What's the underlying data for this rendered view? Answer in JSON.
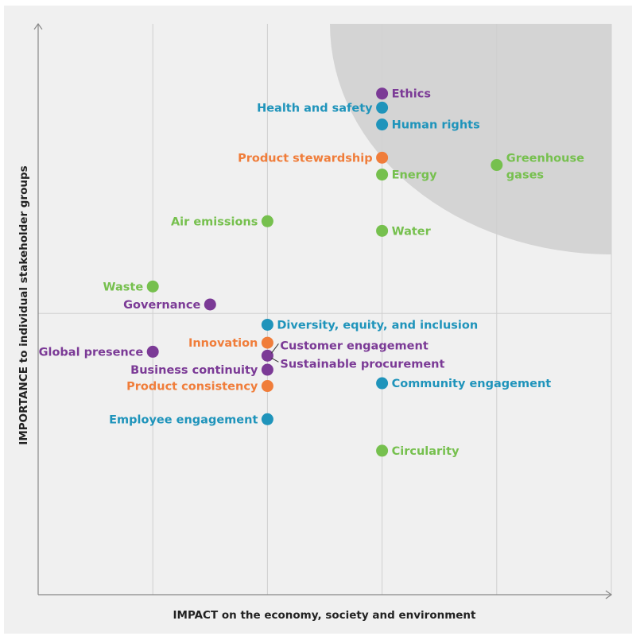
{
  "chart_data": {
    "type": "scatter",
    "title": "",
    "xlabel": "IMPACT on the economy, society and environment",
    "ylabel": "IMPORTANCE to individual stakeholder groups",
    "xlim": [
      0,
      5
    ],
    "ylim": [
      0,
      10.15
    ],
    "grid": {
      "vertical_lines_at": [
        1,
        2,
        3,
        4,
        5
      ],
      "horizontal_lines_at": [
        5
      ]
    },
    "highlight_region": "top-right quarter-ellipse (shaded grey)",
    "colors": {
      "purple": "#7b3a96",
      "blue": "#1f94bb",
      "orange": "#f07d3a",
      "green": "#76c04e",
      "background": "#f0f0f0",
      "shade": "#d4d4d4"
    },
    "points": [
      {
        "label": "Ethics",
        "x": 3,
        "y": 8.91,
        "color": "purple",
        "label_side": "right"
      },
      {
        "label": "Health and safety",
        "x": 3,
        "y": 8.66,
        "color": "blue",
        "label_side": "left"
      },
      {
        "label": "Human rights",
        "x": 3,
        "y": 8.36,
        "color": "blue",
        "label_side": "right"
      },
      {
        "label": "Product stewardship",
        "x": 3,
        "y": 7.77,
        "color": "orange",
        "label_side": "left"
      },
      {
        "label": "Energy",
        "x": 3,
        "y": 7.47,
        "color": "green",
        "label_side": "right"
      },
      {
        "label": "Greenhouse gases",
        "x": 4,
        "y": 7.64,
        "color": "green",
        "label_side": "right"
      },
      {
        "label": "Air emissions",
        "x": 2,
        "y": 6.64,
        "color": "green",
        "label_side": "left"
      },
      {
        "label": "Water",
        "x": 3,
        "y": 6.47,
        "color": "green",
        "label_side": "right"
      },
      {
        "label": "Waste",
        "x": 1,
        "y": 5.48,
        "color": "green",
        "label_side": "left"
      },
      {
        "label": "Governance",
        "x": 1.5,
        "y": 5.16,
        "color": "purple",
        "label_side": "left"
      },
      {
        "label": "Diversity, equity, and inclusion",
        "x": 2,
        "y": 4.8,
        "color": "blue",
        "label_side": "right"
      },
      {
        "label": "Innovation",
        "x": 2,
        "y": 4.48,
        "color": "orange",
        "label_side": "left"
      },
      {
        "label": "Global presence",
        "x": 1,
        "y": 4.32,
        "color": "purple",
        "label_side": "left"
      },
      {
        "label": "Customer engagement / Sustainable procurement",
        "labels": [
          "Customer engagement",
          "Sustainable procurement"
        ],
        "x": 2,
        "y": 4.25,
        "color": "purple",
        "label_side": "right"
      },
      {
        "label": "Business continuity",
        "x": 2,
        "y": 4.0,
        "color": "purple",
        "label_side": "left"
      },
      {
        "label": "Community engagement",
        "x": 3,
        "y": 3.76,
        "color": "blue",
        "label_side": "right"
      },
      {
        "label": "Product consistency",
        "x": 2,
        "y": 3.71,
        "color": "orange",
        "label_side": "left"
      },
      {
        "label": "Employee engagement",
        "x": 2,
        "y": 3.12,
        "color": "blue",
        "label_side": "left"
      },
      {
        "label": "Circularity",
        "x": 3,
        "y": 2.56,
        "color": "green",
        "label_side": "right"
      }
    ]
  }
}
